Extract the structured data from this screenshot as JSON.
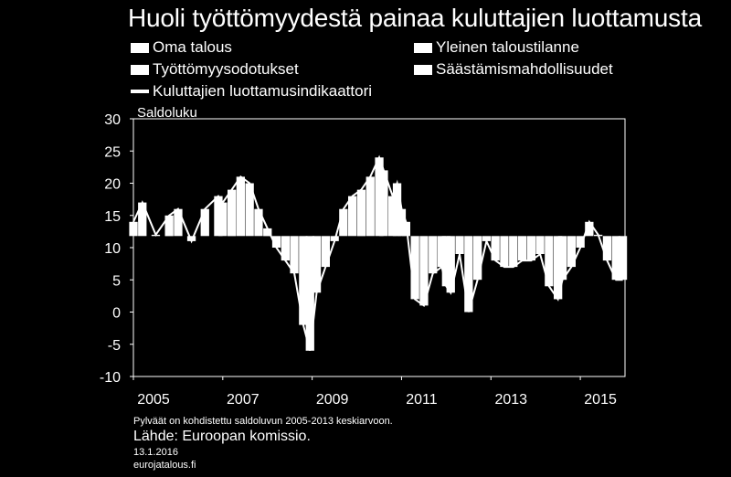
{
  "header": {
    "title": "Huoli työttömyydestä painaa kuluttajien luottamusta"
  },
  "legend": [
    {
      "label": "Oma talous",
      "kind": "bar"
    },
    {
      "label": "Yleinen taloustilanne",
      "kind": "bar"
    },
    {
      "label": "Työttömyysodotukset",
      "kind": "bar"
    },
    {
      "label": "Säästämismahdollisuudet",
      "kind": "bar"
    },
    {
      "label": "Kuluttajien luottamusindikaattori",
      "kind": "line"
    }
  ],
  "footer": {
    "note": "Pylväät on kohdistettu saldoluvun 2005-2013 keskiarvoon.",
    "source": "Lähde: Euroopan komissio.",
    "date": "13.1.2016",
    "site": "eurojatalous.fi"
  },
  "colors": {
    "background": "#000000",
    "foreground": "#ffffff"
  },
  "chart_data": {
    "type": "bar",
    "title": "Huoli työttömyydestä painaa kuluttajien luottamusta",
    "ylabel": "Saldoluku",
    "xlabel": "",
    "ylim": [
      -10,
      30
    ],
    "yticks": [
      "30",
      "25",
      "20",
      "15",
      "10",
      "5",
      "0",
      "-5",
      "-10"
    ],
    "xticks": [
      "2005",
      "2007",
      "2009",
      "2011",
      "2013",
      "2015"
    ],
    "xlim": [
      2005.0,
      2016.0
    ],
    "baseline": 11.8,
    "grid": false,
    "legend_position": "top",
    "series": [
      {
        "name": "Kuluttajien luottamusindikaattori",
        "x": [
          2005.0,
          2005.2,
          2005.5,
          2005.8,
          2006.0,
          2006.3,
          2006.6,
          2006.9,
          2007.0,
          2007.2,
          2007.4,
          2007.6,
          2007.8,
          2008.0,
          2008.2,
          2008.4,
          2008.6,
          2008.8,
          2008.95,
          2009.1,
          2009.3,
          2009.5,
          2009.7,
          2009.9,
          2010.1,
          2010.3,
          2010.5,
          2010.6,
          2010.8,
          2010.9,
          2011.0,
          2011.1,
          2011.3,
          2011.5,
          2011.7,
          2011.9,
          2012.0,
          2012.1,
          2012.3,
          2012.5,
          2012.7,
          2012.9,
          2013.1,
          2013.3,
          2013.5,
          2013.7,
          2013.9,
          2014.1,
          2014.3,
          2014.5,
          2014.6,
          2014.8,
          2015.0,
          2015.2,
          2015.4,
          2015.6,
          2015.8,
          2015.95
        ],
        "values": [
          14,
          17,
          12,
          15,
          16,
          11,
          16,
          18,
          17,
          19,
          21,
          20,
          16,
          13,
          10,
          8,
          6,
          -2,
          -6,
          3,
          7,
          11,
          16,
          18,
          19,
          21,
          24,
          22,
          18,
          20,
          16,
          14,
          2,
          1,
          6,
          7,
          4,
          3,
          9,
          0,
          5,
          11,
          8,
          7,
          7,
          8,
          8,
          9,
          4,
          2,
          5,
          7,
          10,
          14,
          12,
          8,
          5,
          5
        ]
      }
    ]
  }
}
